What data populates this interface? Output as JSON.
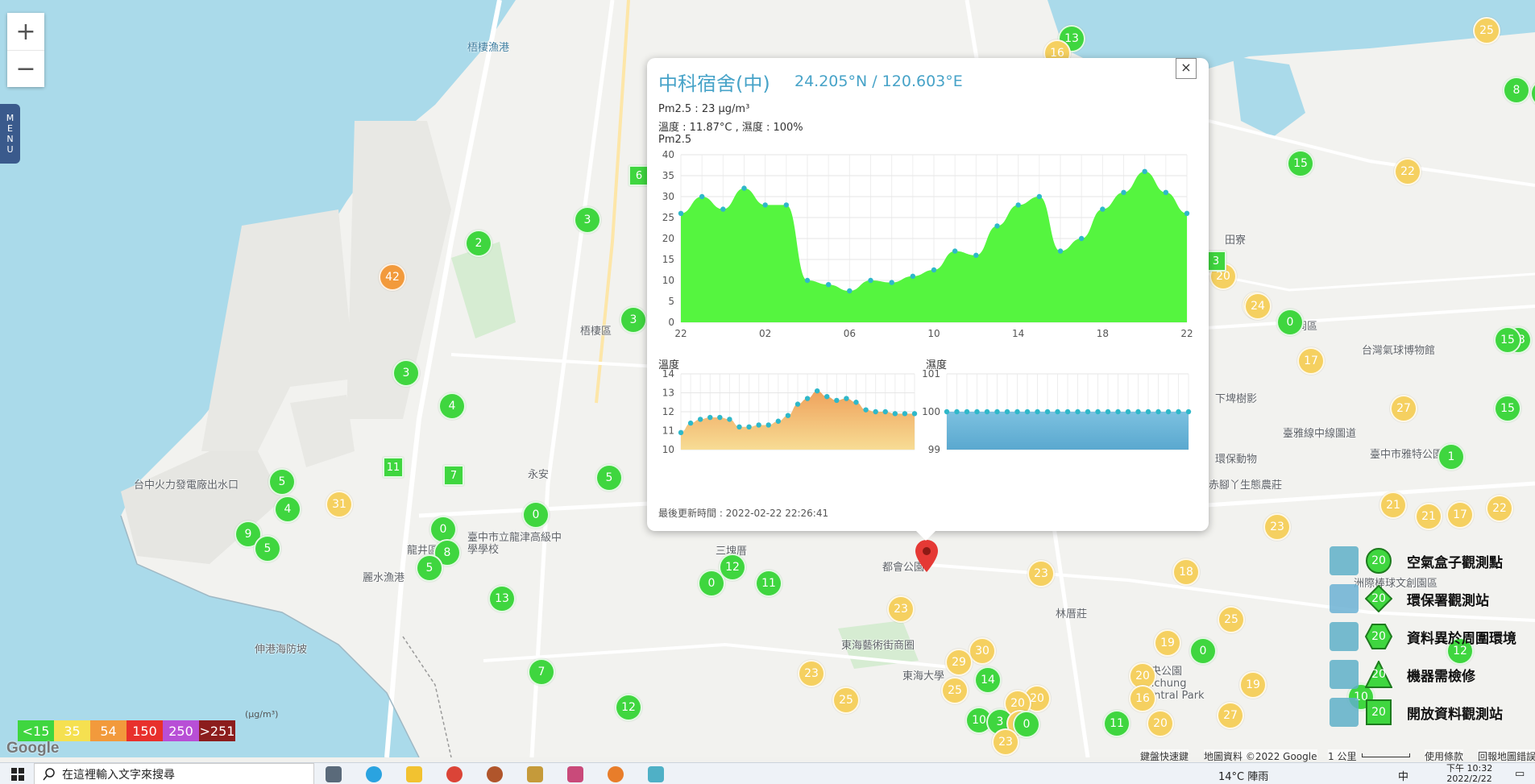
{
  "map": {
    "labels": {
      "harbor": "梧棲漁港",
      "power": "台中火力發電廠出水口",
      "longjing": "龍井區",
      "longfish": "麗水漁港",
      "shengang": "伸港海防坡",
      "wuqi": "梧棲區",
      "yongan": "永安",
      "school": "臺中市立龍津高級中學學校",
      "sanjiaopu": "三塊厝",
      "duhui": "都會公園",
      "donghai_art": "東海藝術街商圈",
      "donghai_u": "東海大學",
      "lintaqiao": "林厝莊",
      "zhonggong": "中央公園 Taichung Central Park",
      "shenggang": "神岡區",
      "balloon": "台灣氣球博物館",
      "tianliao": "田寮",
      "xiapi": "下埤樹影",
      "env_station": "環保動物",
      "chimu": "赤腳丫生態農莊",
      "zhouyi": "洲際棒球文創園區",
      "taiya": "臺中市雅特公園",
      "taiyablue": "臺雅線中線圖道"
    },
    "markers": [
      {
        "v": "13",
        "c": "green"
      },
      {
        "v": "16",
        "c": "yellow"
      },
      {
        "v": "25",
        "c": "yellow"
      },
      {
        "v": "8",
        "c": "green"
      },
      {
        "v": "3",
        "c": "green"
      },
      {
        "v": "2",
        "c": "green"
      },
      {
        "v": "42",
        "c": "orange"
      },
      {
        "v": "3",
        "c": "green"
      },
      {
        "v": "3",
        "c": "green"
      },
      {
        "v": "4",
        "c": "green"
      },
      {
        "v": "5",
        "c": "green"
      },
      {
        "v": "4",
        "c": "green"
      },
      {
        "v": "31",
        "c": "yellow"
      },
      {
        "v": "9",
        "c": "green"
      },
      {
        "v": "5",
        "c": "green"
      },
      {
        "v": "0",
        "c": "green"
      },
      {
        "v": "8",
        "c": "green"
      },
      {
        "v": "5",
        "c": "green"
      },
      {
        "v": "0",
        "c": "green"
      },
      {
        "v": "5",
        "c": "green"
      },
      {
        "v": "13",
        "c": "green"
      },
      {
        "v": "12",
        "c": "green"
      },
      {
        "v": "0",
        "c": "green"
      },
      {
        "v": "11",
        "c": "green"
      },
      {
        "v": "7",
        "c": "green"
      },
      {
        "v": "12",
        "c": "green"
      },
      {
        "v": "15",
        "c": "green"
      },
      {
        "v": "22",
        "c": "yellow"
      },
      {
        "v": "20",
        "c": "yellow"
      },
      {
        "v": "24",
        "c": "yellow"
      },
      {
        "v": "0",
        "c": "green"
      },
      {
        "v": "17",
        "c": "yellow"
      },
      {
        "v": "27",
        "c": "yellow"
      },
      {
        "v": "15",
        "c": "green"
      },
      {
        "v": "13",
        "c": "green"
      },
      {
        "v": "1",
        "c": "green"
      },
      {
        "v": "21",
        "c": "yellow"
      },
      {
        "v": "21",
        "c": "yellow"
      },
      {
        "v": "17",
        "c": "yellow"
      },
      {
        "v": "22",
        "c": "yellow"
      },
      {
        "v": "23",
        "c": "yellow"
      },
      {
        "v": "18",
        "c": "yellow"
      },
      {
        "v": "23",
        "c": "yellow"
      },
      {
        "v": "23",
        "c": "yellow"
      },
      {
        "v": "23",
        "c": "yellow"
      },
      {
        "v": "25",
        "c": "yellow"
      },
      {
        "v": "25",
        "c": "yellow"
      },
      {
        "v": "30",
        "c": "yellow"
      },
      {
        "v": "29",
        "c": "yellow"
      },
      {
        "v": "14",
        "c": "green"
      },
      {
        "v": "10",
        "c": "green"
      },
      {
        "v": "3",
        "c": "green"
      },
      {
        "v": "20",
        "c": "yellow"
      },
      {
        "v": "20",
        "c": "yellow"
      },
      {
        "v": "20",
        "c": "yellow"
      },
      {
        "v": "0",
        "c": "green"
      },
      {
        "v": "23",
        "c": "yellow"
      },
      {
        "v": "19",
        "c": "yellow"
      },
      {
        "v": "20",
        "c": "yellow"
      },
      {
        "v": "16",
        "c": "yellow"
      },
      {
        "v": "0",
        "c": "green"
      },
      {
        "v": "19",
        "c": "yellow"
      },
      {
        "v": "11",
        "c": "green"
      },
      {
        "v": "20",
        "c": "yellow"
      },
      {
        "v": "27",
        "c": "yellow"
      },
      {
        "v": "12",
        "c": "green"
      },
      {
        "v": "10",
        "c": "green"
      },
      {
        "v": "25",
        "c": "yellow"
      },
      {
        "v": "15",
        "c": "green"
      },
      {
        "v": "8",
        "c": "green"
      },
      {
        "v": "24",
        "c": "yellow"
      }
    ],
    "squares": [
      {
        "v": "6"
      },
      {
        "v": "11"
      },
      {
        "v": "7"
      },
      {
        "v": "3"
      }
    ]
  },
  "zoom": {
    "in": "+",
    "out": "−"
  },
  "menu": {
    "label": "MENU"
  },
  "popup": {
    "title": "中科宿舍(中)",
    "coords": "24.205°N / 120.603°E",
    "pm25_line": "Pm2.5 : 23 μg/m³",
    "temp_line": "溫度 : 11.87°C , 濕度 : 100%",
    "pm_chart_label": "Pm2.5",
    "temp_chart_label": "溫度",
    "hum_chart_label": "濕度",
    "updated": "最後更新時間 : 2022-02-22 22:26:41",
    "close": "×"
  },
  "chart_data": [
    {
      "type": "area",
      "title": "Pm2.5",
      "x": [
        "22",
        "23",
        "00",
        "01",
        "02",
        "03",
        "04",
        "05",
        "06",
        "07",
        "08",
        "09",
        "10",
        "11",
        "12",
        "13",
        "14",
        "15",
        "16",
        "17",
        "18",
        "19",
        "20",
        "21",
        "22"
      ],
      "x_ticks": [
        "22",
        "02",
        "06",
        "10",
        "14",
        "18",
        "22"
      ],
      "values": [
        26,
        30,
        27,
        32,
        28,
        28,
        10,
        9,
        7.5,
        10,
        9.5,
        11,
        12.5,
        17,
        16,
        23,
        28,
        30,
        17,
        20,
        27,
        31,
        36,
        31,
        26
      ],
      "ylim": [
        0,
        40
      ],
      "y_ticks": [
        "0",
        "5",
        "10",
        "15",
        "20",
        "25",
        "30",
        "35",
        "40"
      ],
      "grid": true
    },
    {
      "type": "area",
      "title": "溫度",
      "values": [
        10.9,
        11.4,
        11.6,
        11.7,
        11.7,
        11.6,
        11.2,
        11.2,
        11.3,
        11.3,
        11.5,
        11.8,
        12.4,
        12.7,
        13.1,
        12.8,
        12.6,
        12.7,
        12.5,
        12.1,
        12.0,
        12.0,
        11.9,
        11.9,
        11.9
      ],
      "ylim": [
        10,
        14
      ],
      "y_ticks": [
        "10",
        "11",
        "12",
        "13",
        "14"
      ],
      "grid": true
    },
    {
      "type": "area",
      "title": "濕度",
      "values": [
        100,
        100,
        100,
        100,
        100,
        100,
        100,
        100,
        100,
        100,
        100,
        100,
        100,
        100,
        100,
        100,
        100,
        100,
        100,
        100,
        100,
        100,
        100,
        100,
        100
      ],
      "ylim": [
        99,
        101
      ],
      "y_ticks": [
        "99",
        "100",
        "101"
      ],
      "grid": true
    }
  ],
  "scale_legend": {
    "unit": "(μg/m³)",
    "items": [
      {
        "label": "<15",
        "color": "#3fd63f"
      },
      {
        "label": "35",
        "color": "#f5e050"
      },
      {
        "label": "54",
        "color": "#f29a3c"
      },
      {
        "label": "150",
        "color": "#e8302c"
      },
      {
        "label": "250",
        "color": "#b84fd6"
      },
      {
        "label": ">251",
        "color": "#8c1d1d"
      }
    ]
  },
  "map_legend": [
    {
      "label": "空氣盒子觀測點",
      "badge": "20"
    },
    {
      "label": "環保署觀測站",
      "badge": "20"
    },
    {
      "label": "資料異於周圍環境",
      "badge": "20"
    },
    {
      "label": "機器需檢修",
      "badge": "20"
    },
    {
      "label": "開放資料觀測站",
      "badge": "20"
    }
  ],
  "attribution": {
    "shortcuts": "鍵盤快速鍵",
    "mapdata": "地圖資料 ©2022 Google",
    "scale": "1 公里",
    "terms": "使用條款",
    "report": "回報地圖錯誤"
  },
  "google": "Google",
  "taskbar": {
    "search_placeholder": "在這裡輸入文字來搜尋",
    "weather": "14°C 陣雨",
    "ime": "中",
    "time": "下午 10:32",
    "date": "2022/2/22"
  }
}
